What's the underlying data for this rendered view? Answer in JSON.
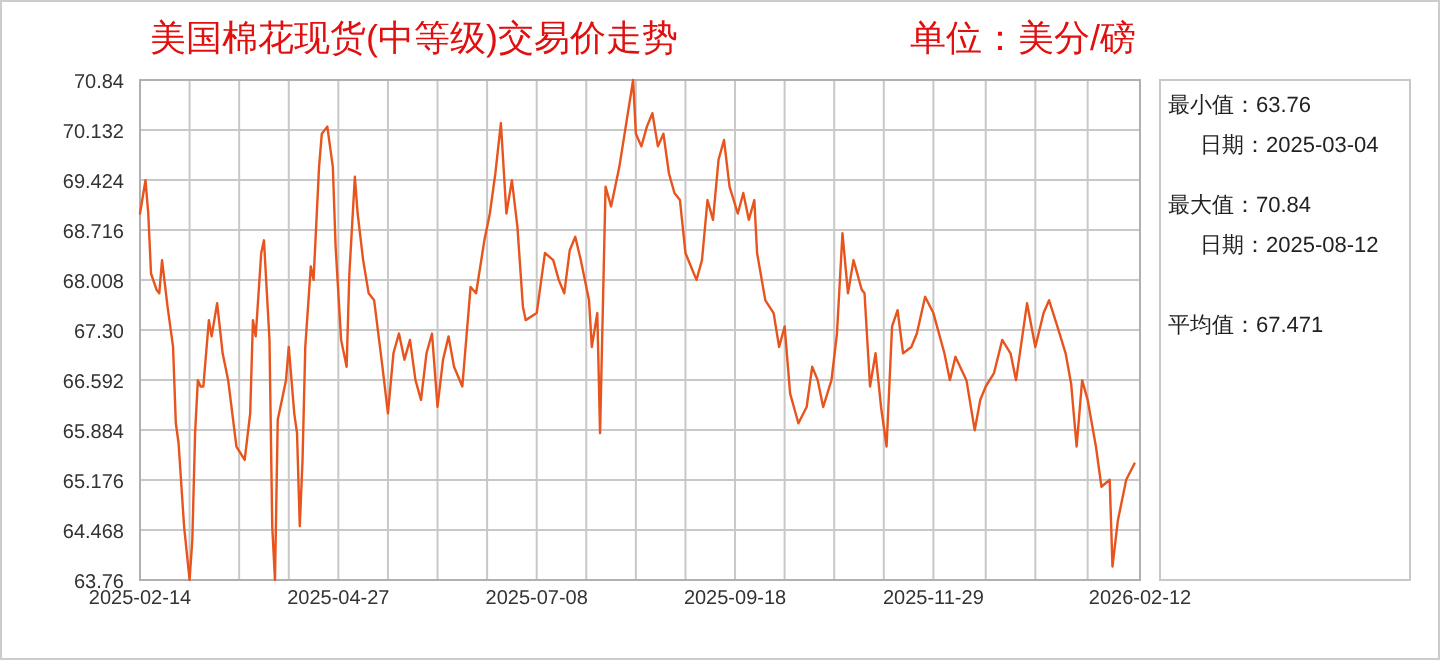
{
  "chart_data": {
    "type": "line",
    "title": "美国棉花现货(中等级)交易价走势",
    "subtitle": "单位：美分/磅",
    "annotations": [
      "最小值：63.76",
      "日期：2025-03-04",
      "最大值：70.84",
      "日期：2025-08-12",
      "平均值：67.471"
    ],
    "grid": true,
    "xlim": [
      "2025-02-14",
      "2026-02-12"
    ],
    "ylim": [
      63.76,
      70.84
    ],
    "xticks": [
      {
        "value": "2025-02-14",
        "label": "2025-02-14"
      },
      {
        "value": "2025-03-04",
        "label": null
      },
      {
        "value": "2025-03-22",
        "label": null
      },
      {
        "value": "2025-04-09",
        "label": null
      },
      {
        "value": "2025-04-27",
        "label": "2025-04-27"
      },
      {
        "value": "2025-05-15",
        "label": null
      },
      {
        "value": "2025-06-02",
        "label": null
      },
      {
        "value": "2025-06-20",
        "label": null
      },
      {
        "value": "2025-07-08",
        "label": "2025-07-08"
      },
      {
        "value": "2025-07-26",
        "label": null
      },
      {
        "value": "2025-08-13",
        "label": null
      },
      {
        "value": "2025-08-31",
        "label": null
      },
      {
        "value": "2025-09-18",
        "label": "2025-09-18"
      },
      {
        "value": "2025-10-06",
        "label": null
      },
      {
        "value": "2025-10-24",
        "label": null
      },
      {
        "value": "2025-11-11",
        "label": null
      },
      {
        "value": "2025-11-29",
        "label": "2025-11-29"
      },
      {
        "value": "2025-12-18",
        "label": null
      },
      {
        "value": "2026-01-05",
        "label": null
      },
      {
        "value": "2026-01-24",
        "label": null
      },
      {
        "value": "2026-02-12",
        "label": "2026-02-12"
      }
    ],
    "yticks": [
      63.76,
      64.468,
      65.176,
      65.884,
      66.592,
      {
        "value": 67.3,
        "label": "67.30"
      },
      68.008,
      68.716,
      69.424,
      70.132,
      70.84
    ],
    "x": [
      "2025-02-14",
      "2025-02-16",
      "2025-02-17",
      "2025-02-18",
      "2025-02-20",
      "2025-02-21",
      "2025-02-22",
      "2025-02-24",
      "2025-02-26",
      "2025-02-27",
      "2025-02-28",
      "2025-03-02",
      "2025-03-04",
      "2025-03-05",
      "2025-03-06",
      "2025-03-07",
      "2025-03-08",
      "2025-03-09",
      "2025-03-11",
      "2025-03-12",
      "2025-03-14",
      "2025-03-16",
      "2025-03-18",
      "2025-03-21",
      "2025-03-24",
      "2025-03-26",
      "2025-03-27",
      "2025-03-28",
      "2025-03-30",
      "2025-03-31",
      "2025-04-02",
      "2025-04-03",
      "2025-04-04",
      "2025-04-05",
      "2025-04-07",
      "2025-04-08",
      "2025-04-09",
      "2025-04-11",
      "2025-04-12",
      "2025-04-13",
      "2025-04-14",
      "2025-04-15",
      "2025-04-17",
      "2025-04-18",
      "2025-04-20",
      "2025-04-21",
      "2025-04-23",
      "2025-04-25",
      "2025-04-26",
      "2025-04-28",
      "2025-04-30",
      "2025-05-01",
      "2025-05-03",
      "2025-05-04",
      "2025-05-06",
      "2025-05-08",
      "2025-05-10",
      "2025-05-13",
      "2025-05-15",
      "2025-05-17",
      "2025-05-19",
      "2025-05-21",
      "2025-05-23",
      "2025-05-25",
      "2025-05-27",
      "2025-05-29",
      "2025-05-31",
      "2025-06-02",
      "2025-06-04",
      "2025-06-06",
      "2025-06-08",
      "2025-06-11",
      "2025-06-14",
      "2025-06-16",
      "2025-06-19",
      "2025-06-21",
      "2025-06-23",
      "2025-06-25",
      "2025-06-27",
      "2025-06-29",
      "2025-07-01",
      "2025-07-03",
      "2025-07-04",
      "2025-07-08",
      "2025-07-11",
      "2025-07-14",
      "2025-07-16",
      "2025-07-18",
      "2025-07-20",
      "2025-07-22",
      "2025-07-24",
      "2025-07-27",
      "2025-07-28",
      "2025-07-30",
      "2025-07-31",
      "2025-08-02",
      "2025-08-04",
      "2025-08-07",
      "2025-08-12",
      "2025-08-13",
      "2025-08-15",
      "2025-08-17",
      "2025-08-19",
      "2025-08-21",
      "2025-08-23",
      "2025-08-25",
      "2025-08-27",
      "2025-08-29",
      "2025-08-31",
      "2025-09-02",
      "2025-09-04",
      "2025-09-06",
      "2025-09-08",
      "2025-09-10",
      "2025-09-12",
      "2025-09-14",
      "2025-09-16",
      "2025-09-19",
      "2025-09-21",
      "2025-09-23",
      "2025-09-25",
      "2025-09-26",
      "2025-09-29",
      "2025-10-02",
      "2025-10-04",
      "2025-10-06",
      "2025-10-08",
      "2025-10-11",
      "2025-10-14",
      "2025-10-16",
      "2025-10-18",
      "2025-10-20",
      "2025-10-23",
      "2025-10-25",
      "2025-10-27",
      "2025-10-29",
      "2025-10-31",
      "2025-11-03",
      "2025-11-04",
      "2025-11-06",
      "2025-11-08",
      "2025-11-10",
      "2025-11-12",
      "2025-11-14",
      "2025-11-16",
      "2025-11-18",
      "2025-11-21",
      "2025-11-23",
      "2025-11-26",
      "2025-11-29",
      "2025-12-03",
      "2025-12-05",
      "2025-12-07",
      "2025-12-11",
      "2025-12-14",
      "2025-12-16",
      "2025-12-18",
      "2025-12-21",
      "2025-12-24",
      "2025-12-27",
      "2025-12-29",
      "2026-01-02",
      "2026-01-05",
      "2026-01-08",
      "2026-01-10",
      "2026-01-13",
      "2026-01-16",
      "2026-01-18",
      "2026-01-20",
      "2026-01-22",
      "2026-01-24",
      "2026-01-27",
      "2026-01-29",
      "2026-02-01",
      "2026-02-02",
      "2026-02-04",
      "2026-02-07",
      "2026-02-10"
    ],
    "series": [
      {
        "color": "#e8541e",
        "values": [
          68.95,
          69.42,
          68.95,
          68.1,
          67.87,
          67.82,
          68.29,
          67.63,
          67.06,
          65.98,
          65.7,
          64.52,
          63.76,
          64.33,
          65.84,
          66.59,
          66.5,
          66.5,
          67.44,
          67.21,
          67.68,
          66.97,
          66.59,
          65.65,
          65.46,
          66.12,
          67.44,
          67.21,
          68.39,
          68.57,
          67.16,
          64.52,
          63.76,
          66.03,
          66.4,
          66.59,
          67.06,
          66.12,
          65.84,
          64.52,
          65.46,
          67.06,
          68.2,
          68.01,
          69.61,
          70.08,
          70.18,
          69.61,
          68.48,
          67.16,
          66.78,
          68.1,
          69.47,
          68.95,
          68.29,
          67.82,
          67.72,
          66.78,
          66.12,
          66.97,
          67.25,
          66.88,
          67.16,
          66.59,
          66.31,
          66.97,
          67.25,
          66.21,
          66.88,
          67.21,
          66.78,
          66.5,
          67.91,
          67.82,
          68.57,
          68.95,
          69.52,
          70.23,
          68.95,
          69.42,
          68.76,
          67.63,
          67.44,
          67.54,
          68.39,
          68.29,
          68.01,
          67.82,
          68.43,
          68.62,
          68.29,
          67.72,
          67.06,
          67.54,
          65.84,
          69.33,
          69.05,
          69.61,
          70.84,
          70.08,
          69.9,
          70.18,
          70.37,
          69.9,
          70.08,
          69.52,
          69.24,
          69.14,
          68.39,
          68.2,
          68.01,
          68.29,
          69.14,
          68.86,
          69.71,
          69.99,
          69.33,
          68.95,
          69.24,
          68.86,
          69.14,
          68.39,
          67.72,
          67.54,
          67.06,
          67.35,
          66.4,
          65.98,
          66.21,
          66.78,
          66.59,
          66.21,
          66.59,
          67.25,
          68.67,
          67.82,
          68.29,
          67.87,
          67.82,
          66.5,
          66.97,
          66.21,
          65.65,
          67.35,
          67.58,
          66.97,
          67.06,
          67.25,
          67.77,
          67.54,
          66.97,
          66.59,
          66.92,
          66.59,
          65.88,
          66.31,
          66.5,
          66.69,
          67.16,
          66.97,
          66.59,
          67.68,
          67.06,
          67.54,
          67.72,
          67.35,
          66.97,
          66.54,
          65.65,
          66.59,
          66.31,
          65.65,
          65.08,
          65.18,
          63.95,
          64.61,
          65.18,
          65.41
        ]
      }
    ]
  }
}
